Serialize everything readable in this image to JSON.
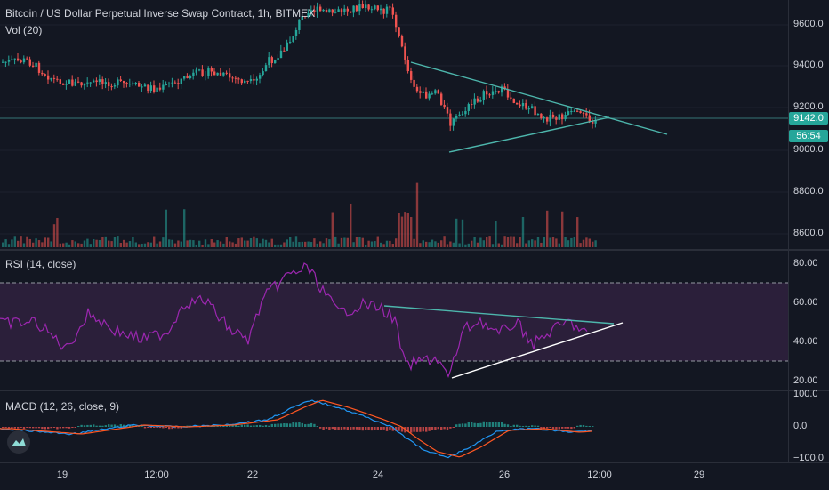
{
  "price_pane": {
    "title": "Bitcoin / US Dollar Perpetual Inverse Swap Contract, 1h, BITMEX",
    "vol_label": "Vol (20)",
    "y_ticks": [
      "9600.0",
      "9400.0",
      "9200.0",
      "9000.0",
      "8800.0",
      "8600.0"
    ],
    "last_price": "9142.0",
    "countdown": "56:54"
  },
  "rsi_pane": {
    "label": "RSI (14, close)",
    "y_ticks": [
      "80.00",
      "60.00",
      "40.00",
      "20.00"
    ]
  },
  "macd_pane": {
    "label": "MACD (12, 26, close, 9)",
    "y_ticks": [
      "100.0",
      "0.0",
      "−100.0"
    ]
  },
  "x_axis": {
    "ticks": [
      "19",
      "12:00",
      "22",
      "24",
      "26",
      "12:00",
      "29"
    ]
  },
  "colors": {
    "background": "#131722",
    "up": "#26a69a",
    "down": "#ef5350",
    "rsi": "#9c27b0",
    "rsi_band": "#2b1f3a",
    "macd": "#2196f3",
    "signal": "#ff5722",
    "trendline": "#4db6ac"
  },
  "icons": {
    "logo": "tradingview-logo-icon"
  }
}
